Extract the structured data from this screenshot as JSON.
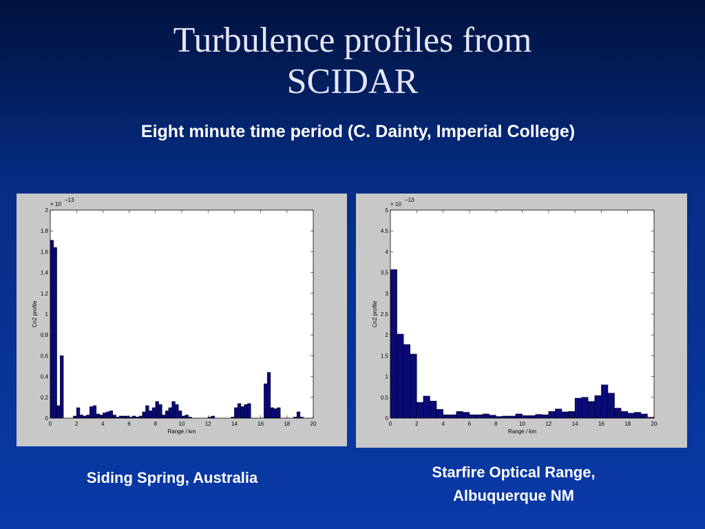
{
  "title": "Turbulence profiles from SCIDAR",
  "subtitle": "Eight minute time period (C. Dainty, Imperial College)",
  "chart_data": [
    {
      "type": "histogram",
      "caption": "Siding Spring, Australia",
      "xlabel": "Range / km",
      "ylabel": "Cn2 profile",
      "scale_label": {
        "base": "× 10",
        "exponent": "−13"
      },
      "color": "#0a0a78",
      "bins": [
        0,
        0.25,
        0.5,
        0.75,
        1,
        1.25,
        1.5,
        1.75,
        2,
        2.25,
        2.5,
        2.75,
        3,
        3.25,
        3.5,
        3.75,
        4,
        4.25,
        4.5,
        4.75,
        5,
        5.25,
        5.5,
        5.75,
        6,
        6.25,
        6.5,
        6.75,
        7,
        7.25,
        7.5,
        7.75,
        8,
        8.25,
        8.5,
        8.75,
        9,
        9.25,
        9.5,
        9.75,
        10,
        10.25,
        10.5,
        10.75,
        11,
        11.25,
        11.5,
        11.75,
        12,
        12.25,
        12.5,
        12.75,
        13,
        13.25,
        13.5,
        13.75,
        14,
        14.25,
        14.5,
        14.75,
        15,
        15.25,
        15.5,
        15.75,
        16,
        16.25,
        16.5,
        16.75,
        17,
        17.25,
        17.5,
        17.75,
        18,
        18.25,
        18.5,
        18.75,
        19,
        19.25,
        19.5,
        19.75,
        20
      ],
      "values": [
        1.71,
        1.64,
        0.12,
        0.6,
        0,
        0,
        0,
        0.02,
        0.1,
        0.03,
        0.02,
        0.03,
        0.11,
        0.12,
        0.04,
        0.03,
        0.05,
        0.06,
        0.07,
        0.03,
        0.01,
        0.02,
        0.02,
        0.02,
        0.01,
        0.02,
        0.01,
        0.02,
        0.06,
        0.12,
        0.07,
        0.1,
        0.16,
        0.13,
        0.03,
        0.07,
        0.1,
        0.16,
        0.13,
        0.07,
        0.02,
        0.03,
        0.01,
        0,
        0,
        0,
        0,
        0,
        0.01,
        0.02,
        0,
        0,
        0,
        0,
        0,
        0.01,
        0.1,
        0.14,
        0.11,
        0.13,
        0.14,
        0,
        0,
        0,
        0,
        0.33,
        0.44,
        0.1,
        0.09,
        0.1,
        0,
        0,
        0,
        0,
        0.01,
        0.06,
        0.01,
        0,
        0,
        0
      ],
      "xlim": [
        0,
        20
      ],
      "xticks": [
        0,
        2,
        4,
        6,
        8,
        10,
        12,
        14,
        16,
        18,
        20
      ],
      "ylim": [
        0,
        2
      ],
      "yticks": [
        0,
        0.2,
        0.4,
        0.6,
        0.8,
        1,
        1.2,
        1.4,
        1.6,
        1.8,
        2
      ]
    },
    {
      "type": "histogram",
      "caption": "Starfire Optical Range, Albuquerque NM",
      "xlabel": "Range / km",
      "ylabel": "Cn2 profile",
      "scale_label": {
        "base": "× 10",
        "exponent": "−13"
      },
      "color": "#0a0a78",
      "bins": [
        0,
        0.5,
        1,
        1.5,
        2,
        2.5,
        3,
        3.5,
        4,
        4.5,
        5,
        5.5,
        6,
        6.5,
        7,
        7.5,
        8,
        8.5,
        9,
        9.5,
        10,
        10.5,
        11,
        11.5,
        12,
        12.5,
        13,
        13.5,
        14,
        14.5,
        15,
        15.5,
        16,
        16.5,
        17,
        17.5,
        18,
        18.5,
        19,
        19.5,
        20
      ],
      "values": [
        3.57,
        2.02,
        1.77,
        1.54,
        0.38,
        0.53,
        0.41,
        0.21,
        0.08,
        0.08,
        0.16,
        0.14,
        0.08,
        0.08,
        0.1,
        0.07,
        0.04,
        0.05,
        0.05,
        0.1,
        0.06,
        0.06,
        0.09,
        0.08,
        0.16,
        0.22,
        0.15,
        0.16,
        0.48,
        0.5,
        0.4,
        0.54,
        0.8,
        0.6,
        0.24,
        0.16,
        0.12,
        0.14,
        0.1,
        0.02
      ],
      "xlim": [
        0,
        20
      ],
      "xticks": [
        0,
        2,
        4,
        6,
        8,
        10,
        12,
        14,
        16,
        18,
        20
      ],
      "ylim": [
        0,
        5
      ],
      "yticks": [
        0,
        0.5,
        1,
        1.5,
        2,
        2.5,
        3,
        3.5,
        4,
        4.5,
        5
      ]
    }
  ]
}
